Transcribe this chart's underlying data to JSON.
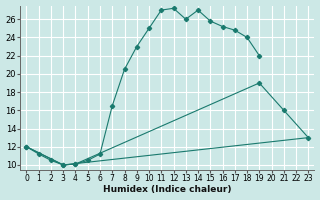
{
  "xlabel": "Humidex (Indice chaleur)",
  "bg_color": "#cce8e6",
  "grid_color": "#ffffff",
  "line_color": "#1a7a6e",
  "xlim": [
    -0.5,
    23.5
  ],
  "ylim": [
    9.5,
    27.5
  ],
  "xticks": [
    0,
    1,
    2,
    3,
    4,
    5,
    6,
    7,
    8,
    9,
    10,
    11,
    12,
    13,
    14,
    15,
    16,
    17,
    18,
    19,
    20,
    21,
    22,
    23
  ],
  "yticks": [
    10,
    12,
    14,
    16,
    18,
    20,
    22,
    24,
    26
  ],
  "line1_x": [
    0,
    1,
    2,
    3,
    4,
    5,
    6,
    7,
    8,
    9,
    10,
    11,
    12,
    13,
    14,
    15,
    16,
    17,
    18,
    19
  ],
  "line1_y": [
    12,
    11.2,
    10.5,
    10.0,
    10.1,
    10.5,
    11.2,
    16.5,
    20.5,
    23.0,
    25.0,
    27.0,
    27.2,
    26.0,
    27.0,
    25.8,
    25.2,
    24.8,
    24.0,
    22.0
  ],
  "line2_x": [
    0,
    3,
    4,
    19,
    21,
    23
  ],
  "line2_y": [
    12,
    10.0,
    10.1,
    19.0,
    16.0,
    13.0
  ],
  "line3_x": [
    0,
    3,
    23
  ],
  "line3_y": [
    12,
    10.0,
    13.0
  ]
}
